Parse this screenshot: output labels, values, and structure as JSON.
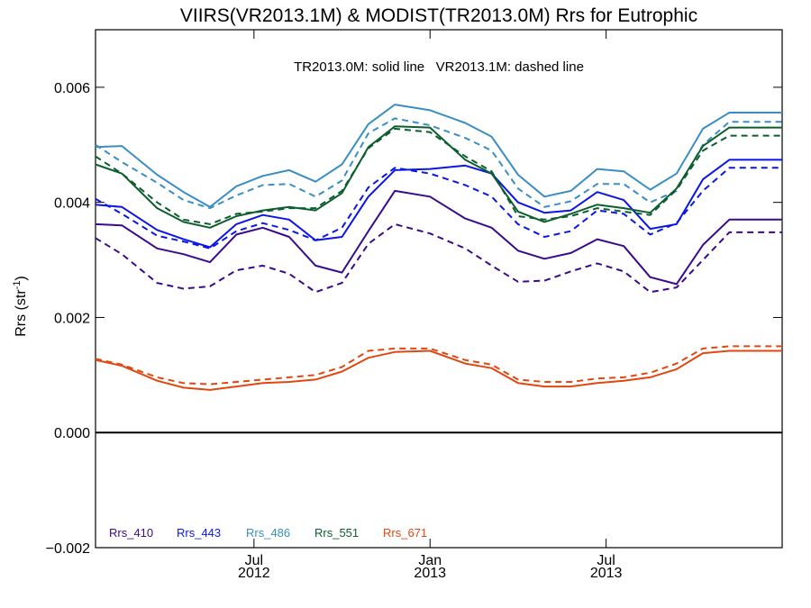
{
  "chart_data": {
    "type": "line",
    "title": "VIIRS(VR2013.1M) & MODIST(TR2013.0M)  Rrs for Eutrophic",
    "annotation": "TR2013.0M: solid line   VR2013.1M: dashed line",
    "ylabel": "Rrs (str-1)",
    "ylabel_main": "Rrs (str",
    "ylabel_sup": "-1",
    "ylabel_close": ")",
    "ylim": [
      -0.002,
      0.007
    ],
    "yticks": [
      -0.002,
      0.0,
      0.002,
      0.004,
      0.006
    ],
    "ytick_labels": [
      "−0.002",
      "0.000",
      "0.002",
      "0.004",
      "0.006"
    ],
    "xlim": [
      0,
      39
    ],
    "xtick_month_labels": [
      "Jul",
      "Jan",
      "Jul"
    ],
    "xtick_year_labels": [
      "2012",
      "2013",
      "2013"
    ],
    "xtick_positions": [
      9,
      19,
      29
    ],
    "zero_line": true,
    "grid": false,
    "legend_position": "bottom-left",
    "x": [
      0,
      1.5,
      3.5,
      5,
      6.5,
      8,
      9.5,
      11,
      12.5,
      14,
      15.5,
      17,
      19,
      21,
      22.5,
      24,
      25.5,
      27,
      28.5,
      30,
      31.5,
      33,
      34.5,
      36,
      39
    ],
    "series": [
      {
        "name": "Rrs_410",
        "style": "solid",
        "color": "#3a0a8c",
        "values": [
          0.00362,
          0.0036,
          0.0032,
          0.0031,
          0.00296,
          0.00344,
          0.00356,
          0.0034,
          0.0029,
          0.00278,
          0.0035,
          0.0042,
          0.0041,
          0.00372,
          0.00356,
          0.00316,
          0.00302,
          0.00312,
          0.00336,
          0.00324,
          0.0027,
          0.00258,
          0.00326,
          0.0037,
          0.0037
        ]
      },
      {
        "name": "Rrs_410",
        "style": "dashed",
        "color": "#3a0a8c",
        "values": [
          0.00338,
          0.0031,
          0.0026,
          0.0025,
          0.00254,
          0.00282,
          0.0029,
          0.00276,
          0.00244,
          0.0026,
          0.00328,
          0.00362,
          0.00346,
          0.0032,
          0.0029,
          0.00262,
          0.00264,
          0.0028,
          0.00294,
          0.0028,
          0.00244,
          0.00252,
          0.003,
          0.00348,
          0.00348
        ]
      },
      {
        "name": "Rrs_443",
        "style": "solid",
        "color": "#0a16e8",
        "values": [
          0.00396,
          0.00392,
          0.00352,
          0.00336,
          0.00322,
          0.00362,
          0.00378,
          0.0037,
          0.00334,
          0.0034,
          0.0041,
          0.00456,
          0.00458,
          0.00464,
          0.0045,
          0.004,
          0.00382,
          0.00386,
          0.00418,
          0.00404,
          0.00354,
          0.00362,
          0.0044,
          0.00474,
          0.00474
        ]
      },
      {
        "name": "Rrs_443",
        "style": "dashed",
        "color": "#0a16e8",
        "values": [
          0.00406,
          0.0038,
          0.00342,
          0.00332,
          0.0032,
          0.0035,
          0.00364,
          0.00352,
          0.00334,
          0.00356,
          0.00426,
          0.0046,
          0.0045,
          0.0043,
          0.0041,
          0.00362,
          0.0034,
          0.0035,
          0.00386,
          0.0038,
          0.00344,
          0.00364,
          0.0042,
          0.0046,
          0.0046
        ]
      },
      {
        "name": "Rrs_486",
        "style": "solid",
        "color": "#3a8ec4",
        "values": [
          0.00496,
          0.00498,
          0.00448,
          0.00418,
          0.00392,
          0.00428,
          0.00446,
          0.00456,
          0.00436,
          0.00466,
          0.00536,
          0.0057,
          0.0056,
          0.00538,
          0.00514,
          0.00448,
          0.0041,
          0.0042,
          0.00458,
          0.00454,
          0.00422,
          0.0045,
          0.00528,
          0.00556,
          0.00556
        ]
      },
      {
        "name": "Rrs_486",
        "style": "dashed",
        "color": "#3a8ec4",
        "values": [
          0.005,
          0.0047,
          0.00434,
          0.00404,
          0.0039,
          0.00412,
          0.0043,
          0.00432,
          0.0041,
          0.00438,
          0.0052,
          0.00546,
          0.00534,
          0.00512,
          0.0049,
          0.00424,
          0.00392,
          0.00402,
          0.00432,
          0.00432,
          0.004,
          0.0042,
          0.005,
          0.0054,
          0.0054
        ]
      },
      {
        "name": "Rrs_551",
        "style": "solid",
        "color": "#0d5e2e",
        "values": [
          0.00466,
          0.0045,
          0.0039,
          0.00366,
          0.00356,
          0.00376,
          0.00386,
          0.00392,
          0.00386,
          0.00416,
          0.00496,
          0.00532,
          0.0053,
          0.00474,
          0.0045,
          0.00384,
          0.00366,
          0.0038,
          0.00396,
          0.0039,
          0.00382,
          0.00424,
          0.00498,
          0.0053,
          0.0053
        ]
      },
      {
        "name": "Rrs_551",
        "style": "dashed",
        "color": "#0d5e2e",
        "values": [
          0.0048,
          0.0045,
          0.004,
          0.0037,
          0.00362,
          0.0038,
          0.00384,
          0.0039,
          0.0039,
          0.0042,
          0.00494,
          0.00528,
          0.00522,
          0.0048,
          0.00454,
          0.00376,
          0.0037,
          0.00376,
          0.0039,
          0.00384,
          0.00378,
          0.00422,
          0.0049,
          0.00516,
          0.00516
        ]
      },
      {
        "name": "Rrs_671",
        "style": "solid",
        "color": "#e2470f",
        "values": [
          0.00126,
          0.00116,
          0.0009,
          0.00078,
          0.00074,
          0.0008,
          0.00086,
          0.00088,
          0.00092,
          0.00106,
          0.0013,
          0.0014,
          0.00142,
          0.0012,
          0.00112,
          0.00086,
          0.0008,
          0.0008,
          0.00086,
          0.0009,
          0.00096,
          0.0011,
          0.00138,
          0.00142,
          0.00142
        ]
      },
      {
        "name": "Rrs_671",
        "style": "dashed",
        "color": "#e2470f",
        "values": [
          0.00128,
          0.00118,
          0.00096,
          0.00086,
          0.00084,
          0.00088,
          0.00092,
          0.00096,
          0.001,
          0.00114,
          0.00142,
          0.00146,
          0.00146,
          0.00126,
          0.00118,
          0.00092,
          0.00088,
          0.00088,
          0.00094,
          0.00096,
          0.00104,
          0.0012,
          0.00146,
          0.0015,
          0.0015
        ]
      }
    ],
    "legend": [
      {
        "label": "Rrs_410",
        "color": "#3a0a8c"
      },
      {
        "label": "Rrs_443",
        "color": "#0a16e8"
      },
      {
        "label": "Rrs_486",
        "color": "#3a8ec4"
      },
      {
        "label": "Rrs_551",
        "color": "#0d5e2e"
      },
      {
        "label": "Rrs_671",
        "color": "#e2470f"
      }
    ]
  }
}
